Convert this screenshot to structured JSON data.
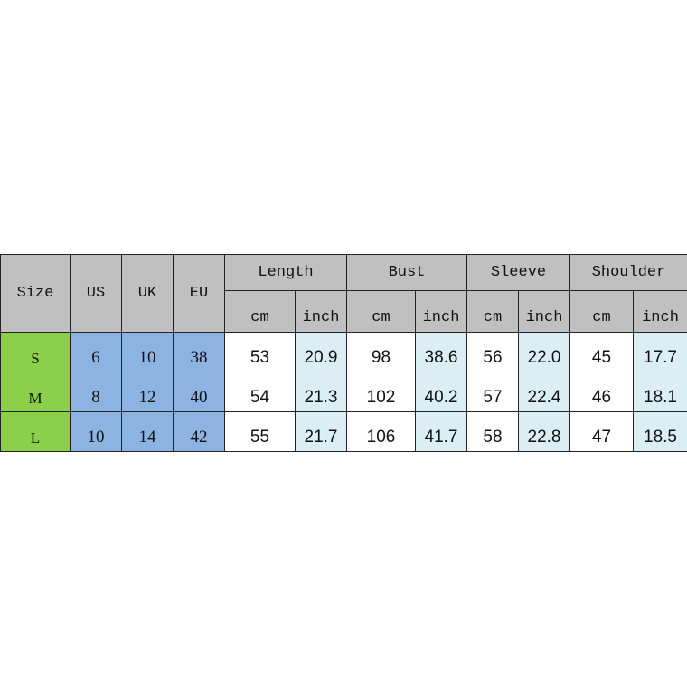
{
  "header": {
    "size": "Size",
    "us": "US",
    "uk": "UK",
    "eu": "EU",
    "groups": [
      "Length",
      "Bust",
      "Sleeve",
      "Shoulder"
    ],
    "unit_cm": "cm",
    "unit_inch": "inch"
  },
  "rows": [
    {
      "size": "S",
      "us": "6",
      "uk": "10",
      "eu": "38",
      "values": [
        "53",
        "20.9",
        "98",
        "38.6",
        "56",
        "22.0",
        "45",
        "17.7"
      ]
    },
    {
      "size": "M",
      "us": "8",
      "uk": "12",
      "eu": "40",
      "values": [
        "54",
        "21.3",
        "102",
        "40.2",
        "57",
        "22.4",
        "46",
        "18.1"
      ]
    },
    {
      "size": "L",
      "us": "10",
      "uk": "14",
      "eu": "42",
      "values": [
        "55",
        "21.7",
        "106",
        "41.7",
        "58",
        "22.8",
        "47",
        "18.5"
      ]
    }
  ],
  "colors": {
    "header": "#c0c0c0",
    "size_col": "#8bd04a",
    "intl_cols": "#8db3e2",
    "inch_cols": "#dbeef4"
  }
}
